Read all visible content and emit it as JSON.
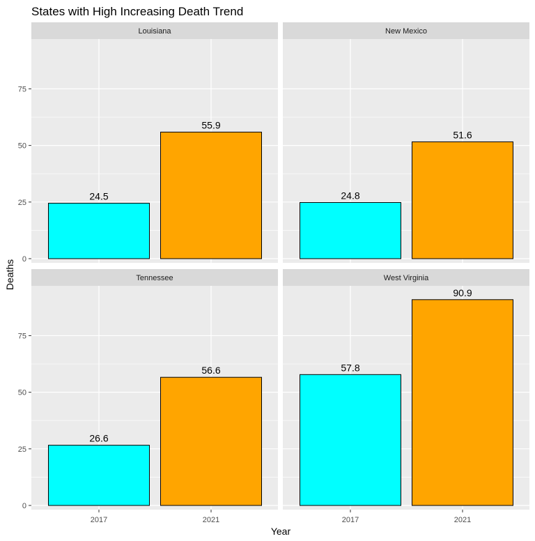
{
  "chart_data": {
    "type": "bar",
    "title": "States with High Increasing Death Trend",
    "xlabel": "Year",
    "ylabel": "Deaths",
    "categories": [
      "2017",
      "2021"
    ],
    "ylim": [
      0,
      97
    ],
    "yticks": [
      0,
      25,
      50,
      75
    ],
    "grid": true,
    "legend": "none",
    "colors": {
      "2017": "#00FFFF",
      "2021": "#FFA500"
    },
    "panel_background": "#EBEBEB",
    "strip_background": "#D9D9D9",
    "facets": [
      {
        "name": "Louisiana",
        "values": [
          24.5,
          55.9
        ]
      },
      {
        "name": "New Mexico",
        "values": [
          24.8,
          51.6
        ]
      },
      {
        "name": "Tennessee",
        "values": [
          26.6,
          56.6
        ]
      },
      {
        "name": "West Virginia",
        "values": [
          57.8,
          90.9
        ]
      }
    ]
  }
}
